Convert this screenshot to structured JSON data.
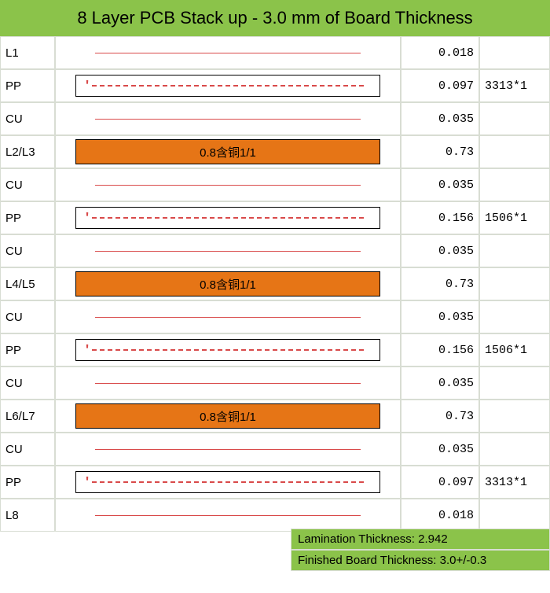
{
  "title": "8 Layer PCB Stack up - 3.0 mm of Board Thickness",
  "header_bg": "#8bc34a",
  "core_bg": "#e67516",
  "footer_bg": "#8bc34a",
  "rows": [
    {
      "label": "L1",
      "type": "solid",
      "thk": "0.018",
      "note": ""
    },
    {
      "label": "PP",
      "type": "pp",
      "thk": "0.097",
      "note": "3313*1"
    },
    {
      "label": "CU",
      "type": "solid",
      "thk": "0.035",
      "note": ""
    },
    {
      "label": "L2/L3",
      "type": "core",
      "text": "0.8含铜1/1",
      "thk": "0.73",
      "note": ""
    },
    {
      "label": "CU",
      "type": "solid",
      "thk": "0.035",
      "note": ""
    },
    {
      "label": "PP",
      "type": "pp",
      "thk": "0.156",
      "note": "1506*1"
    },
    {
      "label": "CU",
      "type": "solid",
      "thk": "0.035",
      "note": ""
    },
    {
      "label": "L4/L5",
      "type": "core",
      "text": "0.8含铜1/1",
      "thk": "0.73",
      "note": ""
    },
    {
      "label": "CU",
      "type": "solid",
      "thk": "0.035",
      "note": ""
    },
    {
      "label": "PP",
      "type": "pp",
      "thk": "0.156",
      "note": "1506*1"
    },
    {
      "label": "CU",
      "type": "solid",
      "thk": "0.035",
      "note": ""
    },
    {
      "label": "L6/L7",
      "type": "core",
      "text": "0.8含铜1/1",
      "thk": "0.73",
      "note": ""
    },
    {
      "label": "CU",
      "type": "solid",
      "thk": "0.035",
      "note": ""
    },
    {
      "label": "PP",
      "type": "pp",
      "thk": "0.097",
      "note": "3313*1"
    },
    {
      "label": "L8",
      "type": "solid",
      "thk": "0.018",
      "note": ""
    }
  ],
  "footer": {
    "lamination": "Lamination Thickness: 2.942",
    "finished": "Finished Board Thickness: 3.0+/-0.3"
  }
}
